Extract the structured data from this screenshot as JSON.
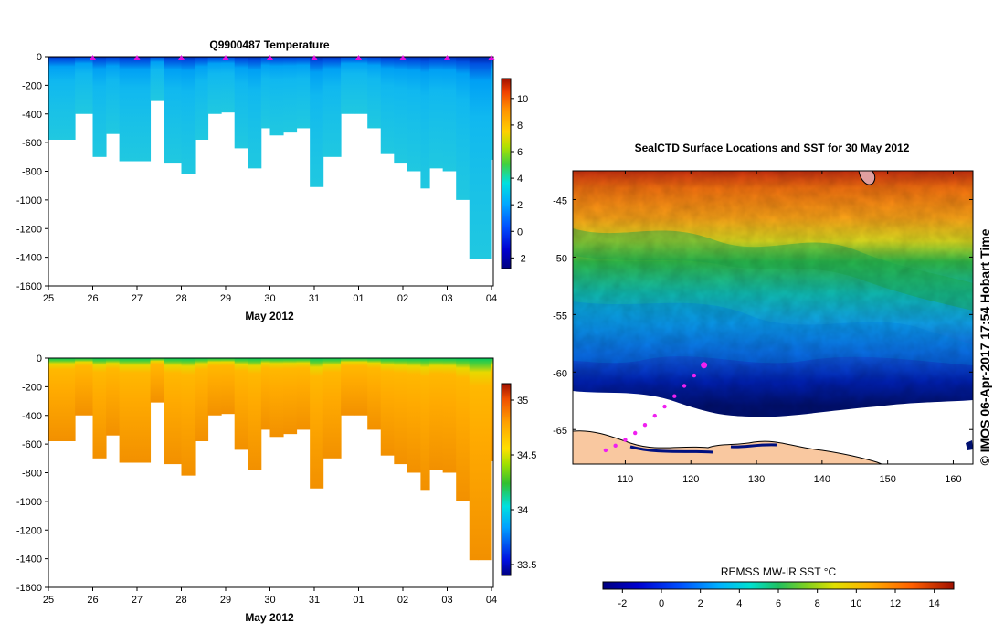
{
  "temperature_chart": {
    "title": "Q9900487  Temperature",
    "xlabel": "May 2012"
  },
  "salinity_chart": {
    "xlabel": "May 2012"
  },
  "map": {
    "title": "SealCTD Surface Locations and SST for 30 May 2012",
    "colorbar_label": "REMSS MW-IR SST °C",
    "copyright": "© IMOS 06-Apr-2017 17:54 Hobart Time"
  },
  "chart_data": [
    {
      "type": "heatmap",
      "name": "temperature",
      "title": "Q9900487  Temperature",
      "xlabel": "May 2012",
      "ylabel": "",
      "x_ticks": [
        "25",
        "26",
        "27",
        "28",
        "29",
        "30",
        "31",
        "01",
        "02",
        "03",
        "04"
      ],
      "y_ticks": [
        0,
        -200,
        -400,
        -600,
        -800,
        -1000,
        -1200,
        -1400,
        -1600
      ],
      "ylim": [
        -1600,
        0
      ],
      "colorbar": {
        "ticks": [
          -2,
          0,
          2,
          4,
          6,
          8,
          10
        ],
        "range": [
          -2.8,
          11.5
        ]
      },
      "profile_day_offsets": [
        0,
        0.3,
        0.6,
        1,
        1.3,
        1.6,
        1.9,
        2.3,
        2.6,
        3,
        3.3,
        3.6,
        3.9,
        4.2,
        4.5,
        4.8,
        5,
        5.3,
        5.6,
        5.9,
        6.2,
        6.6,
        6.9,
        7.2,
        7.5,
        7.8,
        8.1,
        8.4,
        8.6,
        8.9,
        9.2,
        9.5,
        9.7,
        10
      ],
      "profile_max_depths": [
        580,
        580,
        400,
        700,
        540,
        730,
        730,
        310,
        740,
        820,
        580,
        400,
        390,
        640,
        780,
        500,
        550,
        530,
        500,
        910,
        700,
        400,
        400,
        500,
        680,
        740,
        800,
        920,
        780,
        800,
        1000,
        1410,
        1410,
        720
      ],
      "surface_markers": [
        "26",
        "27",
        "28",
        "29",
        "30",
        "31",
        "01",
        "02",
        "03",
        "04"
      ]
    },
    {
      "type": "heatmap",
      "name": "salinity",
      "title": "",
      "xlabel": "May 2012",
      "ylabel": "",
      "x_ticks": [
        "25",
        "26",
        "27",
        "28",
        "29",
        "30",
        "31",
        "01",
        "02",
        "03",
        "04"
      ],
      "y_ticks": [
        0,
        -200,
        -400,
        -600,
        -800,
        -1000,
        -1200,
        -1400,
        -1600
      ],
      "ylim": [
        -1600,
        0
      ],
      "colorbar": {
        "ticks": [
          "33.5",
          "34",
          "34.5",
          "35"
        ],
        "range": [
          33.4,
          35.15
        ]
      },
      "profile_day_offsets": [
        0,
        0.3,
        0.6,
        1,
        1.3,
        1.6,
        1.9,
        2.3,
        2.6,
        3,
        3.3,
        3.6,
        3.9,
        4.2,
        4.5,
        4.8,
        5,
        5.3,
        5.6,
        5.9,
        6.2,
        6.6,
        6.9,
        7.2,
        7.5,
        7.8,
        8.1,
        8.4,
        8.6,
        8.9,
        9.2,
        9.5,
        9.7,
        10
      ],
      "profile_max_depths": [
        580,
        580,
        400,
        700,
        540,
        730,
        730,
        310,
        740,
        820,
        580,
        400,
        390,
        640,
        780,
        500,
        550,
        530,
        500,
        910,
        700,
        400,
        400,
        500,
        680,
        740,
        800,
        920,
        780,
        800,
        1000,
        1410,
        1410,
        720
      ]
    },
    {
      "type": "heatmap",
      "name": "sst_map",
      "title": "SealCTD Surface Locations and SST for 30 May 2012",
      "x_ticks": [
        "110",
        "120",
        "130",
        "140",
        "150",
        "160"
      ],
      "y_ticks": [
        "-45",
        "-50",
        "-55",
        "-60",
        "-65"
      ],
      "xlim": [
        102,
        163
      ],
      "ylim": [
        -68,
        -42.5
      ],
      "colorbar": {
        "label": "REMSS MW-IR SST °C",
        "ticks": [
          "-2",
          "0",
          "2",
          "4",
          "6",
          "8",
          "10",
          "12",
          "14"
        ],
        "range": [
          -3,
          15
        ]
      },
      "track": {
        "lon": [
          122,
          120.5,
          119,
          117.5,
          116,
          114.5,
          113,
          111.5,
          110,
          108.5,
          107
        ],
        "lat": [
          -59.4,
          -60.3,
          -61.2,
          -62.1,
          -63,
          -63.8,
          -64.6,
          -65.3,
          -65.9,
          -66.4,
          -66.8
        ]
      }
    }
  ]
}
